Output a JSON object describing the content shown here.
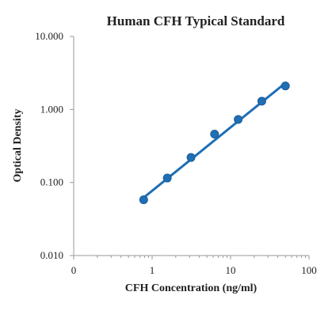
{
  "chart_data": {
    "type": "scatter",
    "title": "Human CFH Typical Standard",
    "xlabel": "CFH Concentration (ng/ml)",
    "ylabel": "Optical Density",
    "x_scale": "log",
    "y_scale": "log",
    "xlim": [
      0.1,
      100
    ],
    "ylim": [
      0.01,
      10
    ],
    "x_tick_values": [
      0.1,
      1,
      10,
      100
    ],
    "x_tick_labels": [
      "0",
      "1",
      "10",
      "100"
    ],
    "y_tick_values": [
      0.01,
      0.1,
      1,
      10
    ],
    "y_tick_labels": [
      "0.010",
      "0.100",
      "1.000",
      "10.000"
    ],
    "grid": false,
    "series": [
      {
        "color": "#1f6fb5",
        "marker": "circle",
        "points": [
          {
            "x": 0.78,
            "y": 0.058
          },
          {
            "x": 1.56,
            "y": 0.115
          },
          {
            "x": 3.13,
            "y": 0.22
          },
          {
            "x": 6.25,
            "y": 0.46
          },
          {
            "x": 12.5,
            "y": 0.73
          },
          {
            "x": 25,
            "y": 1.3
          },
          {
            "x": 50,
            "y": 2.1
          }
        ],
        "trendline": {
          "x": [
            0.78,
            50
          ],
          "y": [
            0.062,
            2.3
          ]
        }
      }
    ]
  }
}
